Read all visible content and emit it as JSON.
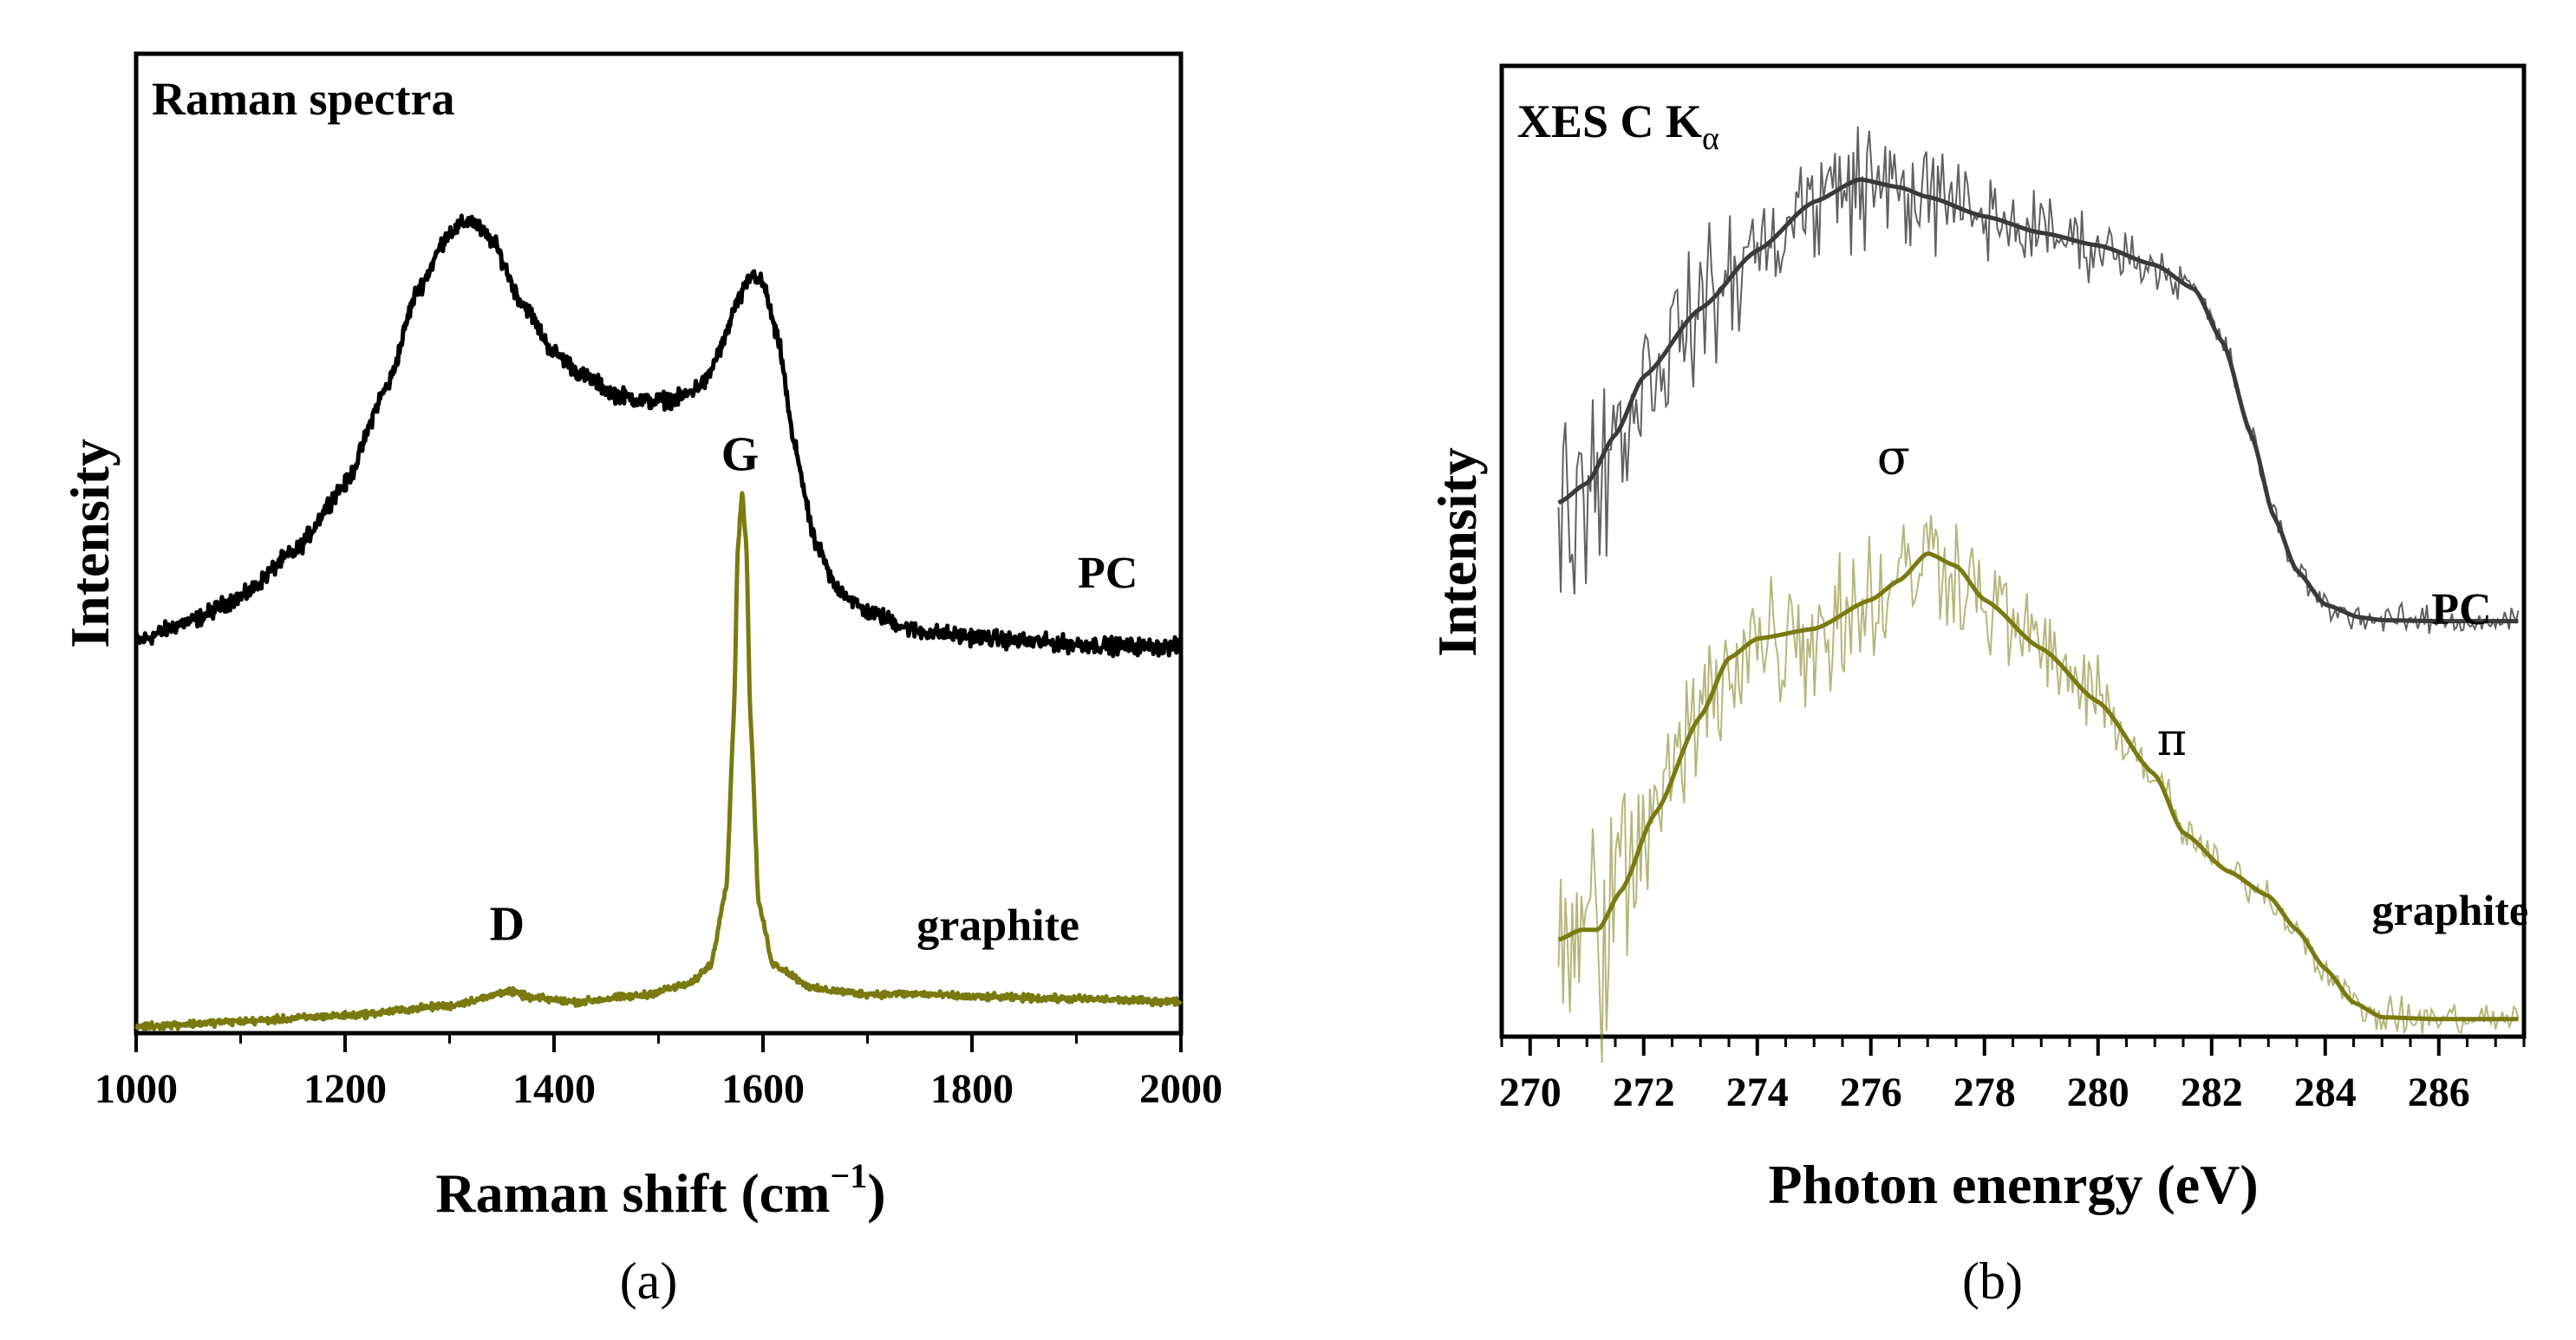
{
  "chart_data": [
    {
      "type": "line",
      "panel_label": "(a)",
      "title": "Raman spectra",
      "xlabel": "Raman shift (cm",
      "xlabel_sup": "−1",
      "xlabel_close": ")",
      "ylabel": "Intensity",
      "xlim": [
        1000,
        2000
      ],
      "ylim": [
        0,
        1
      ],
      "xticks": [
        1000,
        1200,
        1400,
        1600,
        1800,
        2000
      ],
      "xtick_labels": [
        "1000",
        "1200",
        "1400",
        "1600",
        "1800",
        "2000"
      ],
      "annotations": [
        {
          "text": "G",
          "x": 1578,
          "y": 0.575
        },
        {
          "text": "D",
          "x": 1355,
          "y": 0.095
        }
      ],
      "series": [
        {
          "name": "PC",
          "label": "PC",
          "color": "#000000",
          "noise": 0.007,
          "label_pos": [
            1930,
            0.455
          ],
          "points": [
            [
              1000,
              0.4
            ],
            [
              1050,
              0.42
            ],
            [
              1100,
              0.445
            ],
            [
              1150,
              0.49
            ],
            [
              1200,
              0.56
            ],
            [
              1240,
              0.66
            ],
            [
              1270,
              0.76
            ],
            [
              1300,
              0.818
            ],
            [
              1320,
              0.83
            ],
            [
              1340,
              0.81
            ],
            [
              1370,
              0.745
            ],
            [
              1400,
              0.695
            ],
            [
              1430,
              0.67
            ],
            [
              1460,
              0.652
            ],
            [
              1490,
              0.645
            ],
            [
              1520,
              0.648
            ],
            [
              1545,
              0.665
            ],
            [
              1560,
              0.7
            ],
            [
              1575,
              0.745
            ],
            [
              1590,
              0.775
            ],
            [
              1600,
              0.765
            ],
            [
              1615,
              0.705
            ],
            [
              1630,
              0.6
            ],
            [
              1650,
              0.5
            ],
            [
              1670,
              0.455
            ],
            [
              1700,
              0.43
            ],
            [
              1750,
              0.41
            ],
            [
              1800,
              0.405
            ],
            [
              1850,
              0.4
            ],
            [
              1900,
              0.397
            ],
            [
              1950,
              0.395
            ],
            [
              2000,
              0.394
            ]
          ]
        },
        {
          "name": "graphite",
          "label": "graphite",
          "color": "#7a7a10",
          "noise": 0.003,
          "label_pos": [
            1825,
            0.095
          ],
          "points": [
            [
              1000,
              0.007
            ],
            [
              1100,
              0.012
            ],
            [
              1200,
              0.018
            ],
            [
              1300,
              0.028
            ],
            [
              1330,
              0.035
            ],
            [
              1355,
              0.043
            ],
            [
              1380,
              0.036
            ],
            [
              1420,
              0.032
            ],
            [
              1480,
              0.038
            ],
            [
              1530,
              0.05
            ],
            [
              1550,
              0.07
            ],
            [
              1565,
              0.15
            ],
            [
              1572,
              0.32
            ],
            [
              1576,
              0.5
            ],
            [
              1580,
              0.55
            ],
            [
              1584,
              0.5
            ],
            [
              1588,
              0.32
            ],
            [
              1596,
              0.13
            ],
            [
              1610,
              0.07
            ],
            [
              1650,
              0.045
            ],
            [
              1700,
              0.04
            ],
            [
              1750,
              0.04
            ],
            [
              1800,
              0.037
            ],
            [
              1900,
              0.035
            ],
            [
              2000,
              0.032
            ]
          ]
        }
      ]
    },
    {
      "type": "line",
      "panel_label": "(b)",
      "title": "XES C K",
      "title_sub": "α",
      "xlabel": "Photon enenrgy (eV)",
      "ylabel": "Intensity",
      "xlim": [
        269.5,
        287.5
      ],
      "ylim": [
        0,
        1
      ],
      "xticks": [
        270,
        272,
        274,
        276,
        278,
        280,
        282,
        284,
        286
      ],
      "xtick_labels": [
        "270",
        "272",
        "274",
        "276",
        "278",
        "280",
        "282",
        "284",
        "286"
      ],
      "annotations": [
        {
          "text": "σ",
          "x": 276.4,
          "y": 0.58
        },
        {
          "text": "π",
          "x": 281.3,
          "y": 0.29
        }
      ],
      "series": [
        {
          "name": "PC",
          "label": "PC",
          "color": "#3a3a3a",
          "smooth_noise": 0.0,
          "raw_noise": 0.05,
          "label_pos": [
            286.4,
            0.425
          ],
          "points": [
            [
              270.5,
              0.55
            ],
            [
              271,
              0.57
            ],
            [
              271.5,
              0.62
            ],
            [
              272,
              0.68
            ],
            [
              273,
              0.75
            ],
            [
              274,
              0.81
            ],
            [
              275,
              0.86
            ],
            [
              275.8,
              0.883
            ],
            [
              276.5,
              0.875
            ],
            [
              277,
              0.865
            ],
            [
              278,
              0.845
            ],
            [
              279,
              0.828
            ],
            [
              280,
              0.815
            ],
            [
              281,
              0.795
            ],
            [
              281.7,
              0.77
            ],
            [
              282.2,
              0.715
            ],
            [
              282.7,
              0.62
            ],
            [
              283.1,
              0.535
            ],
            [
              283.5,
              0.48
            ],
            [
              284,
              0.445
            ],
            [
              284.6,
              0.432
            ],
            [
              285,
              0.429
            ],
            [
              286,
              0.428
            ],
            [
              287.5,
              0.428
            ]
          ]
        },
        {
          "name": "graphite",
          "label": "graphite",
          "color": "#7a7a10",
          "smooth_noise": 0.0,
          "raw_noise": 0.06,
          "label_pos": [
            286.2,
            0.115
          ],
          "points": [
            [
              270.5,
              0.1
            ],
            [
              270.9,
              0.11
            ],
            [
              271.2,
              0.11
            ],
            [
              271.6,
              0.15
            ],
            [
              272.2,
              0.23
            ],
            [
              273,
              0.33
            ],
            [
              273.5,
              0.39
            ],
            [
              274,
              0.41
            ],
            [
              275,
              0.42
            ],
            [
              276,
              0.45
            ],
            [
              276.5,
              0.47
            ],
            [
              277,
              0.498
            ],
            [
              277.5,
              0.485
            ],
            [
              278,
              0.45
            ],
            [
              279,
              0.4
            ],
            [
              280,
              0.345
            ],
            [
              281,
              0.27
            ],
            [
              281.5,
              0.21
            ],
            [
              282.3,
              0.17
            ],
            [
              283,
              0.145
            ],
            [
              283.5,
              0.11
            ],
            [
              284,
              0.07
            ],
            [
              284.5,
              0.035
            ],
            [
              285,
              0.02
            ],
            [
              286,
              0.018
            ],
            [
              287.5,
              0.018
            ]
          ]
        }
      ]
    }
  ]
}
